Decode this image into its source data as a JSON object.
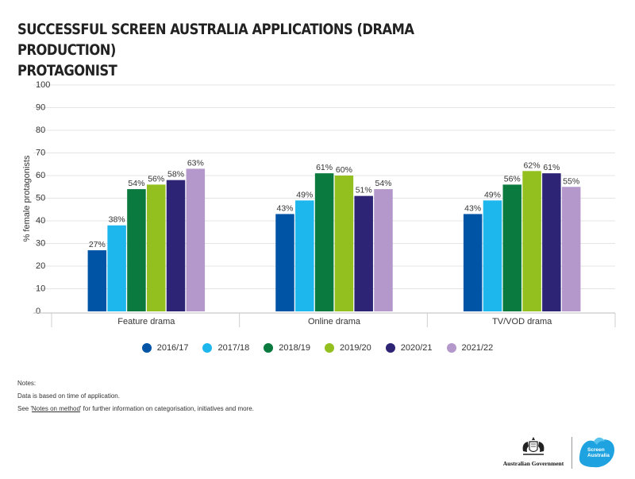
{
  "title_lines": [
    "SUCCESSFUL SCREEN AUSTRALIA APPLICATIONS (DRAMA PRODUCTION)",
    "PROTAGONIST"
  ],
  "notes": {
    "heading": "Notes:",
    "line1": "Data is based on time of application.",
    "line2_prefix": "See '",
    "line2_link": "Notes on method",
    "line2_suffix": "' for further information on categorisation, initiatives and more."
  },
  "logos": {
    "gov_label": "Australian Government",
    "sa_line1": "Screen",
    "sa_line2": "Australia",
    "crest_icon": "coat-of-arms-icon",
    "sa_icon": "screen-australia-logo-icon"
  },
  "chart_data": {
    "type": "bar",
    "title": "SUCCESSFUL SCREEN AUSTRALIA APPLICATIONS (DRAMA PRODUCTION) PROTAGONIST",
    "xlabel": "",
    "ylabel": "% female protagonists",
    "ylim": [
      0,
      100
    ],
    "yticks": [
      0,
      10,
      20,
      30,
      40,
      50,
      60,
      70,
      80,
      90,
      100
    ],
    "grid": true,
    "legend_position": "bottom-center",
    "value_suffix": "%",
    "categories": [
      "Feature drama",
      "Online drama",
      "TV/VOD drama"
    ],
    "series": [
      {
        "name": "2016/17",
        "color": "#0054a6",
        "values": [
          27,
          43,
          43
        ]
      },
      {
        "name": "2017/18",
        "color": "#1eb7ed",
        "values": [
          38,
          49,
          49
        ]
      },
      {
        "name": "2018/19",
        "color": "#0b7a3e",
        "values": [
          54,
          61,
          56
        ]
      },
      {
        "name": "2019/20",
        "color": "#93c01f",
        "values": [
          56,
          60,
          62
        ]
      },
      {
        "name": "2020/21",
        "color": "#2d2475",
        "values": [
          58,
          51,
          61
        ]
      },
      {
        "name": "2021/22",
        "color": "#b497cb",
        "values": [
          63,
          54,
          55
        ]
      }
    ]
  }
}
